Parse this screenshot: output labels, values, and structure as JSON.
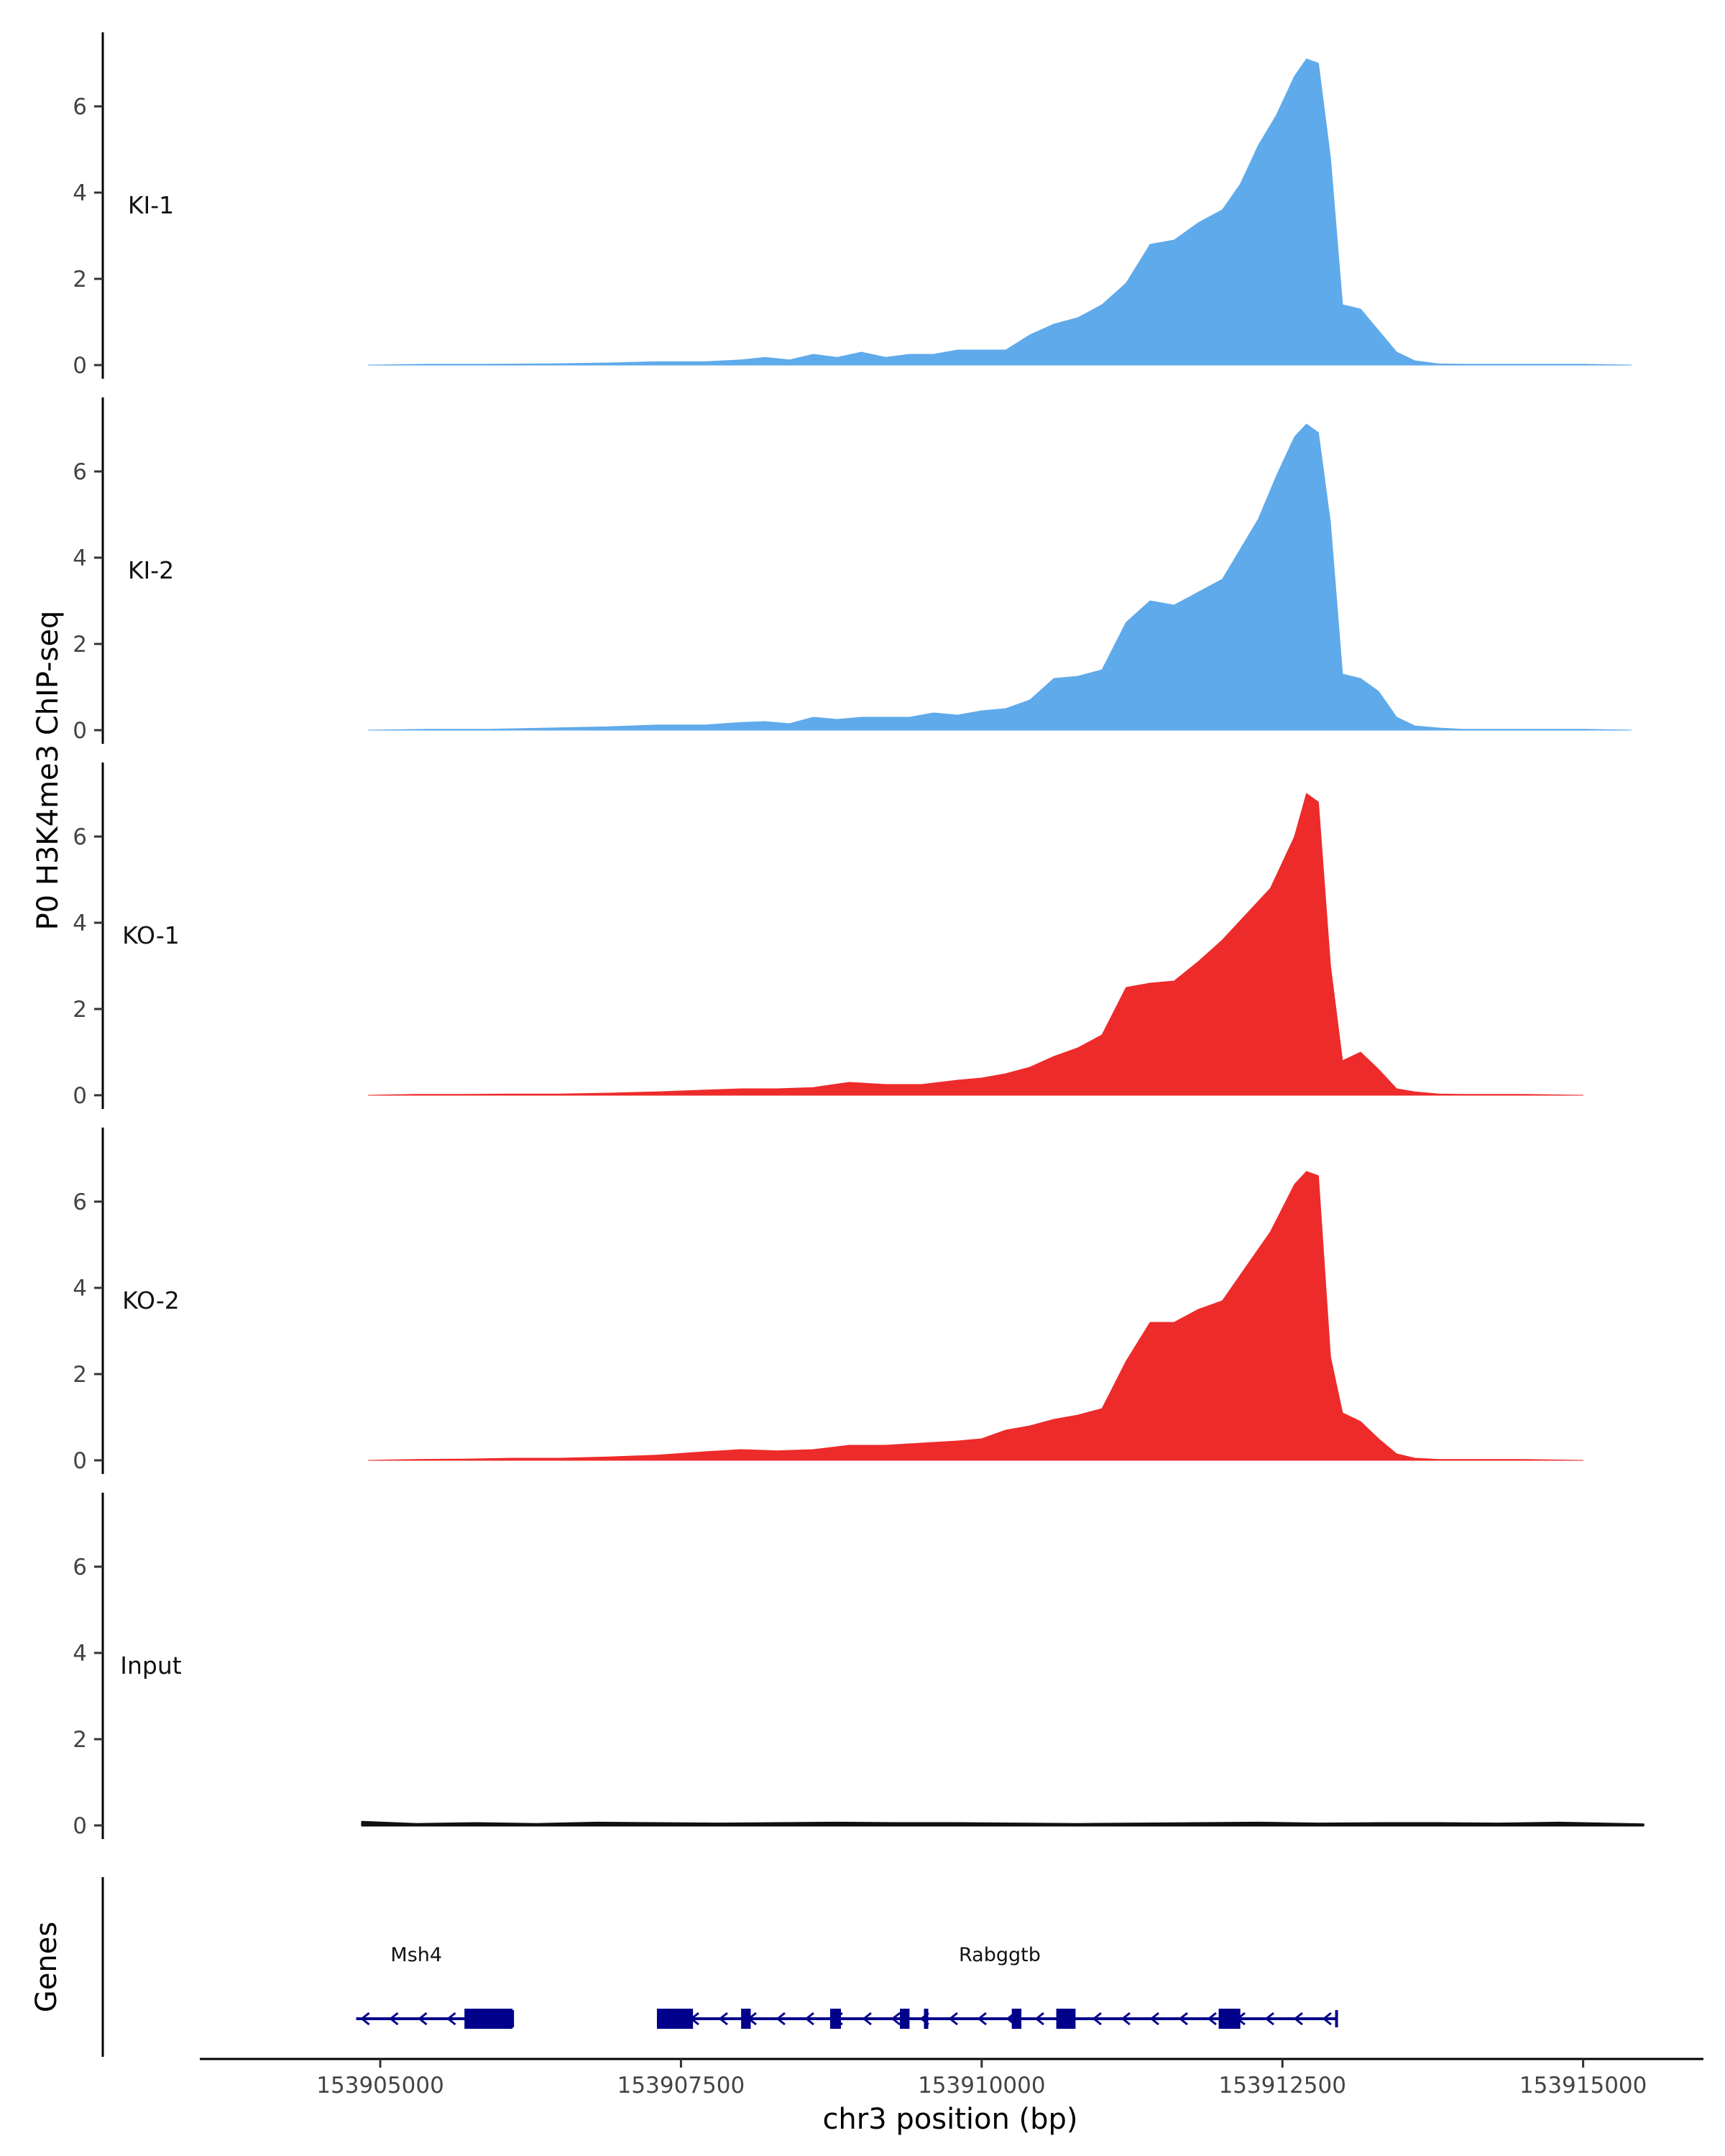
{
  "chart_data": {
    "type": "area",
    "title": "",
    "ylabel": "P0 H3K4me3 ChIP-seq",
    "xlabel": "chr3 position (bp)",
    "xlim": [
      153903500,
      153916000
    ],
    "ylim": [
      0,
      7.6
    ],
    "x_ticks": [
      153905000,
      153907500,
      153910000,
      153912500,
      153915000
    ],
    "x_tick_labels": [
      "153905000",
      "153907500",
      "153910000",
      "153912500",
      "153915000"
    ],
    "y_ticks": [
      0,
      2,
      4,
      6
    ],
    "y_tick_labels": [
      "0",
      "2",
      "4",
      "6"
    ],
    "grid": false,
    "colors": {
      "KI": "#5FAAEA",
      "KO": "#EE2B2B",
      "Input": "#111111",
      "gene": "#00008B",
      "axis": "#000000"
    },
    "series": [
      {
        "name": "KI-1",
        "label": "KI-1",
        "color": "#5FAAEA",
        "x": [
          153904900,
          153905400,
          153905900,
          153906400,
          153906900,
          153907300,
          153907700,
          153908000,
          153908200,
          153908400,
          153908600,
          153908800,
          153909000,
          153909200,
          153909400,
          153909600,
          153909800,
          153910000,
          153910200,
          153910400,
          153910600,
          153910800,
          153911000,
          153911200,
          153911400,
          153911600,
          153911800,
          153912000,
          153912150,
          153912300,
          153912450,
          153912600,
          153912700,
          153912800,
          153912900,
          153913000,
          153913150,
          153913300,
          153913450,
          153913600,
          153913800,
          153914000,
          153914500,
          153915000,
          153915400
        ],
        "values": [
          0,
          0.02,
          0.02,
          0.03,
          0.05,
          0.08,
          0.08,
          0.12,
          0.18,
          0.12,
          0.25,
          0.18,
          0.3,
          0.18,
          0.25,
          0.25,
          0.35,
          0.35,
          0.35,
          0.7,
          0.95,
          1.1,
          1.4,
          1.9,
          2.8,
          2.9,
          3.3,
          3.6,
          4.2,
          5.1,
          5.8,
          6.7,
          7.1,
          7.0,
          4.8,
          1.4,
          1.3,
          0.8,
          0.3,
          0.1,
          0.03,
          0.02,
          0.02,
          0.02,
          0
        ]
      },
      {
        "name": "KI-2",
        "label": "KI-2",
        "color": "#5FAAEA",
        "x": [
          153904900,
          153905400,
          153905900,
          153906400,
          153906900,
          153907300,
          153907700,
          153908000,
          153908200,
          153908400,
          153908600,
          153908800,
          153909000,
          153909200,
          153909400,
          153909600,
          153909800,
          153910000,
          153910200,
          153910400,
          153910600,
          153910800,
          153911000,
          153911200,
          153911400,
          153911600,
          153911800,
          153912000,
          153912150,
          153912300,
          153912450,
          153912600,
          153912700,
          153912800,
          153912900,
          153913000,
          153913150,
          153913300,
          153913450,
          153913600,
          153913800,
          153914000,
          153914500,
          153915000,
          153915400
        ],
        "values": [
          0,
          0.02,
          0.02,
          0.05,
          0.08,
          0.12,
          0.12,
          0.18,
          0.2,
          0.15,
          0.3,
          0.25,
          0.3,
          0.3,
          0.3,
          0.4,
          0.35,
          0.45,
          0.5,
          0.7,
          1.2,
          1.25,
          1.4,
          2.5,
          3.0,
          2.9,
          3.2,
          3.5,
          4.2,
          4.9,
          5.9,
          6.8,
          7.1,
          6.9,
          4.8,
          1.3,
          1.2,
          0.9,
          0.3,
          0.1,
          0.05,
          0.02,
          0.02,
          0.02,
          0
        ]
      },
      {
        "name": "KO-1",
        "label": "KO-1",
        "color": "#EE2B2B",
        "x": [
          153904900,
          153905300,
          153905700,
          153906100,
          153906500,
          153906900,
          153907300,
          153907700,
          153908000,
          153908300,
          153908600,
          153908900,
          153909200,
          153909500,
          153909800,
          153910000,
          153910200,
          153910400,
          153910600,
          153910800,
          153911000,
          153911200,
          153911400,
          153911600,
          153911800,
          153912000,
          153912200,
          153912400,
          153912600,
          153912700,
          153912800,
          153912900,
          153913000,
          153913150,
          153913300,
          153913450,
          153913600,
          153913800,
          153914000,
          153914500,
          153915000
        ],
        "values": [
          0,
          0.02,
          0.02,
          0.03,
          0.03,
          0.05,
          0.08,
          0.12,
          0.15,
          0.15,
          0.18,
          0.3,
          0.25,
          0.25,
          0.35,
          0.4,
          0.5,
          0.65,
          0.9,
          1.1,
          1.4,
          2.5,
          2.6,
          2.65,
          3.1,
          3.6,
          4.2,
          4.8,
          6.0,
          7.0,
          6.8,
          3.0,
          0.8,
          1.0,
          0.6,
          0.15,
          0.08,
          0.03,
          0.02,
          0.02,
          0
        ]
      },
      {
        "name": "KO-2",
        "label": "KO-2",
        "color": "#EE2B2B",
        "x": [
          153904900,
          153905300,
          153905700,
          153906100,
          153906500,
          153906900,
          153907300,
          153907700,
          153908000,
          153908300,
          153908600,
          153908900,
          153909200,
          153909500,
          153909800,
          153910000,
          153910200,
          153910400,
          153910600,
          153910800,
          153911000,
          153911200,
          153911400,
          153911600,
          153911800,
          153912000,
          153912200,
          153912400,
          153912600,
          153912700,
          153912800,
          153912900,
          153913000,
          153913150,
          153913300,
          153913450,
          153913600,
          153913800,
          153914000,
          153914500,
          153915000
        ],
        "values": [
          0,
          0.02,
          0.03,
          0.05,
          0.05,
          0.08,
          0.12,
          0.2,
          0.25,
          0.22,
          0.25,
          0.35,
          0.35,
          0.4,
          0.45,
          0.5,
          0.7,
          0.8,
          0.95,
          1.05,
          1.2,
          2.3,
          3.2,
          3.2,
          3.5,
          3.7,
          4.5,
          5.3,
          6.4,
          6.7,
          6.6,
          2.4,
          1.1,
          0.9,
          0.5,
          0.15,
          0.05,
          0.02,
          0.02,
          0.02,
          0
        ]
      },
      {
        "name": "Input",
        "label": "Input",
        "color": "#111111",
        "x": [
          153904850,
          153905300,
          153905800,
          153906300,
          153906800,
          153907300,
          153907800,
          153908300,
          153908800,
          153909300,
          153909800,
          153910300,
          153910800,
          153911300,
          153911800,
          153912300,
          153912800,
          153913300,
          153913800,
          153914300,
          153914800,
          153915500
        ],
        "values": [
          0.08,
          0.03,
          0.05,
          0.03,
          0.06,
          0.05,
          0.04,
          0.05,
          0.06,
          0.05,
          0.05,
          0.04,
          0.03,
          0.04,
          0.05,
          0.06,
          0.04,
          0.05,
          0.05,
          0.04,
          0.06,
          0.02
        ]
      }
    ],
    "genes_panel": {
      "ylabel": "Genes",
      "genes": [
        {
          "name": "Msh4",
          "start": 153904800,
          "end": 153906100,
          "strand": "-",
          "exons": [
            [
              153905700,
              153906100
            ]
          ]
        },
        {
          "name": "Rabggtb",
          "start": 153907300,
          "end": 153912950,
          "strand": "-",
          "exons": [
            [
              153907300,
              153907600
            ],
            [
              153908000,
              153908080
            ],
            [
              153908740,
              153908830
            ],
            [
              153909320,
              153909400
            ],
            [
              153909520,
              153909550
            ],
            [
              153910250,
              153910330
            ],
            [
              153910620,
              153910780
            ],
            [
              153911970,
              153912150
            ]
          ]
        }
      ]
    }
  }
}
